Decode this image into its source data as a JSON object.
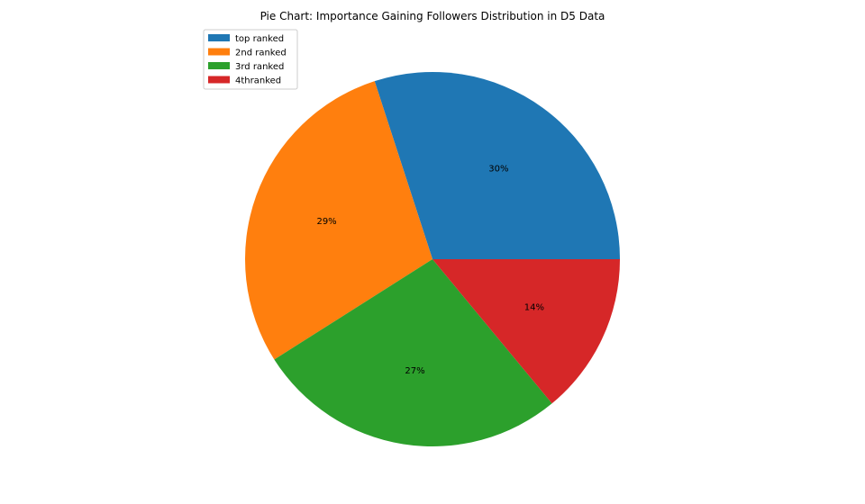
{
  "chart_data": {
    "type": "pie",
    "title": "Pie Chart: Importance Gaining Followers Distribution in D5 Data",
    "categories": [
      "top ranked",
      "2nd ranked",
      "3rd ranked",
      "4thranked"
    ],
    "values": [
      30,
      29,
      27,
      14
    ],
    "labels": [
      "30%",
      "29%",
      "27%",
      "14%"
    ],
    "colors": [
      "#1f77b4",
      "#ff7f0e",
      "#2ca02c",
      "#d62728"
    ],
    "start_angle_deg": 0,
    "direction": "counterclockwise",
    "legend_position": "upper-left"
  }
}
